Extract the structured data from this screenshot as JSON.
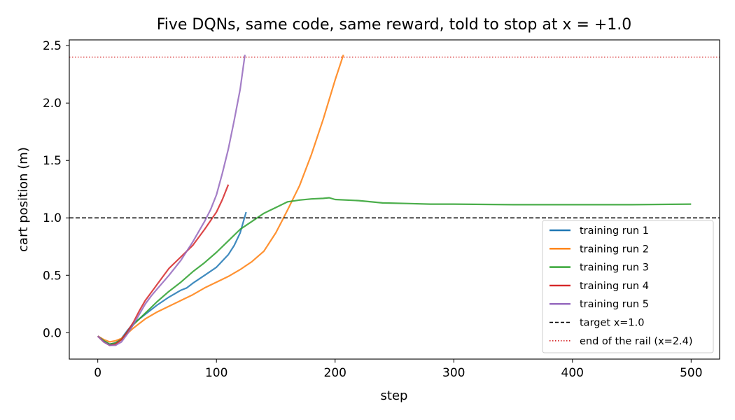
{
  "chart_data": {
    "type": "line",
    "title": "Five DQNs, same code, same reward, told to stop at x = +1.0",
    "xlabel": "step",
    "ylabel": "cart position (m)",
    "xlim": [
      -24,
      524
    ],
    "ylim": [
      -0.23,
      2.55
    ],
    "xticks": [
      "0",
      "100",
      "200",
      "300",
      "400",
      "500"
    ],
    "yticks": [
      "0.0",
      "0.5",
      "1.0",
      "1.5",
      "2.0",
      "2.5"
    ],
    "grid": false,
    "legend_position": "lower-right",
    "series": [
      {
        "name": "training run 1",
        "color": "#1f77b4",
        "style": "solid",
        "x": [
          0,
          5,
          10,
          15,
          20,
          25,
          30,
          40,
          50,
          60,
          70,
          75,
          80,
          90,
          100,
          110,
          115,
          120,
          125
        ],
        "y": [
          -0.03,
          -0.07,
          -0.1,
          -0.09,
          -0.05,
          0.02,
          0.08,
          0.16,
          0.24,
          0.31,
          0.37,
          0.39,
          0.43,
          0.5,
          0.57,
          0.68,
          0.76,
          0.87,
          1.05
        ]
      },
      {
        "name": "training run 2",
        "color": "#ff7f0e",
        "style": "solid",
        "x": [
          0,
          5,
          10,
          15,
          20,
          30,
          40,
          50,
          60,
          70,
          80,
          90,
          100,
          110,
          120,
          130,
          140,
          150,
          155,
          160,
          170,
          180,
          190,
          200,
          207
        ],
        "y": [
          -0.03,
          -0.06,
          -0.08,
          -0.07,
          -0.05,
          0.04,
          0.12,
          0.18,
          0.23,
          0.28,
          0.33,
          0.39,
          0.44,
          0.49,
          0.55,
          0.62,
          0.71,
          0.87,
          0.97,
          1.07,
          1.28,
          1.55,
          1.86,
          2.2,
          2.42
        ]
      },
      {
        "name": "training run 3",
        "color": "#2ca02c",
        "style": "solid",
        "x": [
          0,
          5,
          10,
          15,
          20,
          25,
          30,
          40,
          50,
          60,
          70,
          80,
          90,
          100,
          110,
          120,
          130,
          140,
          150,
          160,
          170,
          180,
          190,
          195,
          200,
          220,
          240,
          260,
          280,
          300,
          350,
          400,
          450,
          500
        ],
        "y": [
          -0.03,
          -0.07,
          -0.1,
          -0.09,
          -0.06,
          0.01,
          0.07,
          0.17,
          0.27,
          0.36,
          0.44,
          0.53,
          0.61,
          0.7,
          0.8,
          0.9,
          0.97,
          1.04,
          1.09,
          1.14,
          1.155,
          1.165,
          1.17,
          1.175,
          1.16,
          1.15,
          1.13,
          1.125,
          1.12,
          1.12,
          1.115,
          1.115,
          1.115,
          1.12
        ]
      },
      {
        "name": "training run 4",
        "color": "#d62728",
        "style": "solid",
        "x": [
          0,
          5,
          10,
          15,
          20,
          25,
          30,
          35,
          40,
          45,
          50,
          55,
          60,
          70,
          80,
          90,
          100,
          105,
          110
        ],
        "y": [
          -0.03,
          -0.08,
          -0.11,
          -0.1,
          -0.06,
          0.01,
          0.09,
          0.19,
          0.28,
          0.35,
          0.42,
          0.49,
          0.56,
          0.66,
          0.76,
          0.9,
          1.05,
          1.16,
          1.29
        ]
      },
      {
        "name": "training run 5",
        "color": "#9467bd",
        "style": "solid",
        "x": [
          0,
          5,
          10,
          15,
          20,
          25,
          30,
          35,
          40,
          45,
          50,
          60,
          70,
          80,
          90,
          95,
          100,
          105,
          110,
          115,
          120,
          124
        ],
        "y": [
          -0.03,
          -0.08,
          -0.11,
          -0.11,
          -0.08,
          -0.01,
          0.07,
          0.16,
          0.25,
          0.32,
          0.38,
          0.5,
          0.63,
          0.79,
          0.97,
          1.07,
          1.2,
          1.39,
          1.6,
          1.85,
          2.12,
          2.42
        ]
      },
      {
        "name": "target x=1.0",
        "color": "#000000",
        "style": "dashed",
        "hline": 1.0
      },
      {
        "name": "end of the rail (x=2.4)",
        "color": "#d62728",
        "style": "dotted",
        "hline": 2.4
      }
    ]
  }
}
